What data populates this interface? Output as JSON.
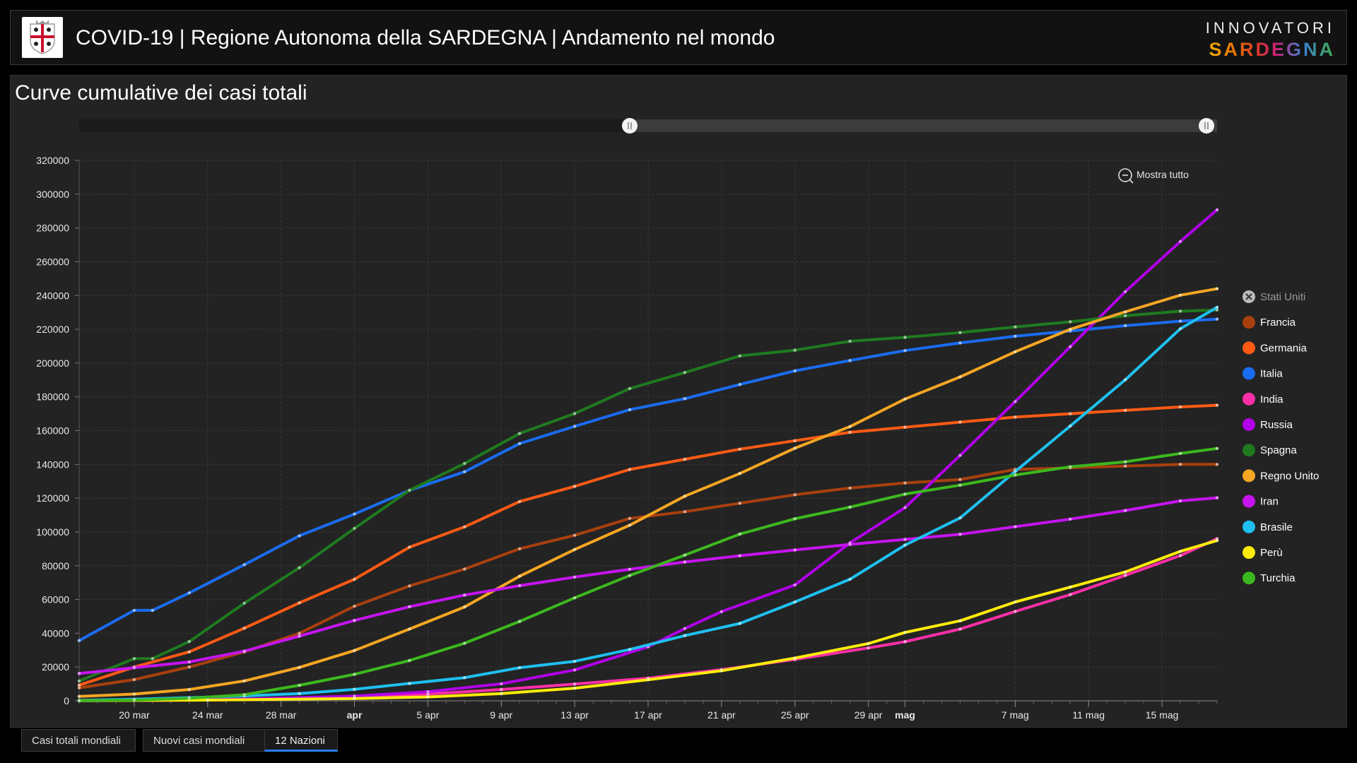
{
  "header": {
    "title": "COVID-19 | Regione Autonoma della SARDEGNA | Andamento nel mondo",
    "brand_top": "INNOVATORI",
    "brand_bottom": "SARDEGNA"
  },
  "panel": {
    "title": "Curve cumulative dei casi totali"
  },
  "controls": {
    "zoom_reset_label": "Mostra tutto"
  },
  "tabs": [
    {
      "label": "Casi totali mondiali",
      "active": false
    },
    {
      "label": "Nuovi casi mondiali",
      "active": false
    },
    {
      "label": "12 Nazioni",
      "active": true
    }
  ],
  "chart_data": {
    "type": "line",
    "title": "Curve cumulative dei casi totali",
    "xlabel": "",
    "ylabel": "",
    "ylim": [
      0,
      320000
    ],
    "yticks": [
      0,
      20000,
      40000,
      60000,
      80000,
      100000,
      120000,
      140000,
      160000,
      180000,
      200000,
      220000,
      240000,
      260000,
      280000,
      300000,
      320000
    ],
    "x_range": [
      "2020-03-17",
      "2020-05-18"
    ],
    "x_ticks": [
      {
        "date": "2020-03-20",
        "label": "20 mar",
        "bold": false
      },
      {
        "date": "2020-03-24",
        "label": "24 mar",
        "bold": false
      },
      {
        "date": "2020-03-28",
        "label": "28 mar",
        "bold": false
      },
      {
        "date": "2020-04-01",
        "label": "apr",
        "bold": true
      },
      {
        "date": "2020-04-05",
        "label": "5 apr",
        "bold": false
      },
      {
        "date": "2020-04-09",
        "label": "9 apr",
        "bold": false
      },
      {
        "date": "2020-04-13",
        "label": "13 apr",
        "bold": false
      },
      {
        "date": "2020-04-17",
        "label": "17 apr",
        "bold": false
      },
      {
        "date": "2020-04-21",
        "label": "21 apr",
        "bold": false
      },
      {
        "date": "2020-04-25",
        "label": "25 apr",
        "bold": false
      },
      {
        "date": "2020-04-29",
        "label": "29 apr",
        "bold": false
      },
      {
        "date": "2020-05-01",
        "label": "mag",
        "bold": true
      },
      {
        "date": "2020-05-07",
        "label": "7 mag",
        "bold": false
      },
      {
        "date": "2020-05-11",
        "label": "11 mag",
        "bold": false
      },
      {
        "date": "2020-05-15",
        "label": "15 mag",
        "bold": false
      }
    ],
    "grid": true,
    "legend_position": "right",
    "series": [
      {
        "name": "Stati Uniti",
        "color": "#cccccc",
        "hidden": true,
        "dates": [],
        "values": []
      },
      {
        "name": "Francia",
        "color": "#a8400e",
        "dates": [
          "2020-03-17",
          "2020-03-20",
          "2020-03-23",
          "2020-03-26",
          "2020-03-29",
          "2020-04-01",
          "2020-04-04",
          "2020-04-07",
          "2020-04-10",
          "2020-04-13",
          "2020-04-16",
          "2020-04-19",
          "2020-04-22",
          "2020-04-25",
          "2020-04-28",
          "2020-05-01",
          "2020-05-04",
          "2020-05-07",
          "2020-05-10",
          "2020-05-13",
          "2020-05-16",
          "2020-05-18"
        ],
        "values": [
          7700,
          12600,
          20000,
          29000,
          40000,
          56000,
          68000,
          78000,
          90000,
          98000,
          108000,
          112000,
          117000,
          122000,
          126000,
          129000,
          131000,
          137000,
          138000,
          139000,
          140000,
          140000
        ]
      },
      {
        "name": "Germania",
        "color": "#ff5a14",
        "dates": [
          "2020-03-17",
          "2020-03-20",
          "2020-03-23",
          "2020-03-26",
          "2020-03-29",
          "2020-04-01",
          "2020-04-04",
          "2020-04-07",
          "2020-04-10",
          "2020-04-13",
          "2020-04-16",
          "2020-04-19",
          "2020-04-22",
          "2020-04-25",
          "2020-04-28",
          "2020-05-01",
          "2020-05-04",
          "2020-05-07",
          "2020-05-10",
          "2020-05-13",
          "2020-05-16",
          "2020-05-18"
        ],
        "values": [
          9300,
          20000,
          29000,
          43000,
          58000,
          72000,
          91000,
          103000,
          118000,
          127000,
          137000,
          143000,
          149000,
          154000,
          159000,
          162000,
          165000,
          168000,
          170000,
          172000,
          174000,
          175000
        ]
      },
      {
        "name": "Italia",
        "color": "#1a6cf0",
        "dates": [
          "2020-03-17",
          "2020-03-20",
          "2020-03-21",
          "2020-03-23",
          "2020-03-26",
          "2020-03-29",
          "2020-04-01",
          "2020-04-04",
          "2020-04-07",
          "2020-04-10",
          "2020-04-13",
          "2020-04-16",
          "2020-04-19",
          "2020-04-22",
          "2020-04-25",
          "2020-04-28",
          "2020-05-01",
          "2020-05-04",
          "2020-05-07",
          "2020-05-10",
          "2020-05-13",
          "2020-05-16",
          "2020-05-18"
        ],
        "values": [
          35700,
          53600,
          53600,
          63900,
          80600,
          97700,
          110600,
          124600,
          135600,
          152300,
          162500,
          172400,
          178900,
          187300,
          195400,
          201500,
          207400,
          211900,
          215900,
          219000,
          222100,
          224800,
          226000
        ]
      },
      {
        "name": "India",
        "color": "#ff2fa8",
        "dates": [
          "2020-03-17",
          "2020-03-24",
          "2020-04-01",
          "2020-04-05",
          "2020-04-09",
          "2020-04-13",
          "2020-04-17",
          "2020-04-21",
          "2020-04-25",
          "2020-04-29",
          "2020-05-01",
          "2020-05-04",
          "2020-05-07",
          "2020-05-10",
          "2020-05-13",
          "2020-05-16",
          "2020-05-18"
        ],
        "values": [
          100,
          500,
          1900,
          4000,
          6700,
          9900,
          13400,
          18500,
          24500,
          31300,
          35000,
          42500,
          52900,
          62900,
          74300,
          86000,
          96000
        ]
      },
      {
        "name": "Russia",
        "color": "#b100e8",
        "dates": [
          "2020-03-17",
          "2020-03-24",
          "2020-04-01",
          "2020-04-05",
          "2020-04-09",
          "2020-04-13",
          "2020-04-17",
          "2020-04-19",
          "2020-04-21",
          "2020-04-25",
          "2020-04-28",
          "2020-05-01",
          "2020-05-04",
          "2020-05-07",
          "2020-05-10",
          "2020-05-13",
          "2020-05-16",
          "2020-05-18"
        ],
        "values": [
          100,
          500,
          2800,
          5400,
          10100,
          18300,
          32000,
          42800,
          52800,
          68600,
          93500,
          114400,
          145300,
          177200,
          209700,
          242300,
          272000,
          290700
        ]
      },
      {
        "name": "Spagna",
        "color": "#1f7a1f",
        "dates": [
          "2020-03-17",
          "2020-03-20",
          "2020-03-21",
          "2020-03-23",
          "2020-03-26",
          "2020-03-29",
          "2020-04-01",
          "2020-04-04",
          "2020-04-07",
          "2020-04-10",
          "2020-04-13",
          "2020-04-16",
          "2020-04-19",
          "2020-04-22",
          "2020-04-25",
          "2020-04-28",
          "2020-05-01",
          "2020-05-04",
          "2020-05-07",
          "2020-05-10",
          "2020-05-13",
          "2020-05-16",
          "2020-05-18"
        ],
        "values": [
          11700,
          25000,
          25000,
          35100,
          57800,
          78800,
          102100,
          124700,
          140500,
          158300,
          170100,
          184900,
          194400,
          204200,
          207600,
          212900,
          215200,
          218000,
          221400,
          224400,
          228000,
          230700,
          231400
        ]
      },
      {
        "name": "Regno Unito",
        "color": "#f5a623",
        "dates": [
          "2020-03-17",
          "2020-03-20",
          "2020-03-23",
          "2020-03-26",
          "2020-03-29",
          "2020-04-01",
          "2020-04-04",
          "2020-04-07",
          "2020-04-10",
          "2020-04-13",
          "2020-04-16",
          "2020-04-19",
          "2020-04-22",
          "2020-04-25",
          "2020-04-28",
          "2020-05-01",
          "2020-05-04",
          "2020-05-07",
          "2020-05-10",
          "2020-05-13",
          "2020-05-16",
          "2020-05-18"
        ],
        "values": [
          2600,
          4000,
          6700,
          11800,
          19800,
          29800,
          42500,
          55600,
          73800,
          89600,
          104000,
          121200,
          134600,
          149600,
          162400,
          178700,
          191800,
          206700,
          220000,
          230300,
          240200,
          244000
        ]
      },
      {
        "name": "Iran",
        "color": "#c614f0",
        "dates": [
          "2020-03-17",
          "2020-03-20",
          "2020-03-23",
          "2020-03-26",
          "2020-03-29",
          "2020-04-01",
          "2020-04-04",
          "2020-04-07",
          "2020-04-10",
          "2020-04-13",
          "2020-04-16",
          "2020-04-19",
          "2020-04-22",
          "2020-04-25",
          "2020-04-28",
          "2020-05-01",
          "2020-05-04",
          "2020-05-07",
          "2020-05-10",
          "2020-05-13",
          "2020-05-16",
          "2020-05-18"
        ],
        "values": [
          16200,
          19600,
          23000,
          29400,
          38300,
          47600,
          55700,
          62600,
          68200,
          73300,
          77900,
          82200,
          85900,
          89300,
          92600,
          95600,
          98600,
          103100,
          107600,
          112700,
          118400,
          120200
        ]
      },
      {
        "name": "Brasile",
        "color": "#1ec0f0",
        "dates": [
          "2020-03-17",
          "2020-03-20",
          "2020-03-23",
          "2020-03-26",
          "2020-03-29",
          "2020-04-01",
          "2020-04-04",
          "2020-04-07",
          "2020-04-10",
          "2020-04-13",
          "2020-04-16",
          "2020-04-19",
          "2020-04-22",
          "2020-04-25",
          "2020-04-28",
          "2020-05-01",
          "2020-05-04",
          "2020-05-07",
          "2020-05-10",
          "2020-05-13",
          "2020-05-16",
          "2020-05-18"
        ],
        "values": [
          300,
          900,
          1900,
          2900,
          4300,
          6800,
          10300,
          13700,
          19600,
          23400,
          30400,
          38600,
          45800,
          58500,
          72000,
          92200,
          108300,
          135800,
          162700,
          190100,
          220300,
          233000
        ]
      },
      {
        "name": "Perù",
        "color": "#ffeb0a",
        "dates": [
          "2020-03-17",
          "2020-03-24",
          "2020-04-01",
          "2020-04-05",
          "2020-04-09",
          "2020-04-13",
          "2020-04-17",
          "2020-04-21",
          "2020-04-25",
          "2020-04-29",
          "2020-05-01",
          "2020-05-04",
          "2020-05-07",
          "2020-05-10",
          "2020-05-13",
          "2020-05-16",
          "2020-05-18"
        ],
        "values": [
          100,
          400,
          1400,
          2300,
          4300,
          7500,
          12500,
          17800,
          25300,
          33900,
          40500,
          47400,
          58500,
          67300,
          76300,
          88500,
          94900
        ]
      },
      {
        "name": "Turchia",
        "color": "#3cb81e",
        "dates": [
          "2020-03-17",
          "2020-03-20",
          "2020-03-23",
          "2020-03-26",
          "2020-03-29",
          "2020-04-01",
          "2020-04-04",
          "2020-04-07",
          "2020-04-10",
          "2020-04-13",
          "2020-04-16",
          "2020-04-19",
          "2020-04-22",
          "2020-04-25",
          "2020-04-28",
          "2020-05-01",
          "2020-05-04",
          "2020-05-07",
          "2020-05-10",
          "2020-05-13",
          "2020-05-16",
          "2020-05-18"
        ],
        "values": [
          100,
          400,
          1500,
          3600,
          9200,
          15700,
          23900,
          34100,
          47000,
          61000,
          74200,
          86300,
          98700,
          107800,
          114700,
          122400,
          127700,
          133700,
          138600,
          141500,
          146500,
          149400
        ]
      }
    ]
  }
}
